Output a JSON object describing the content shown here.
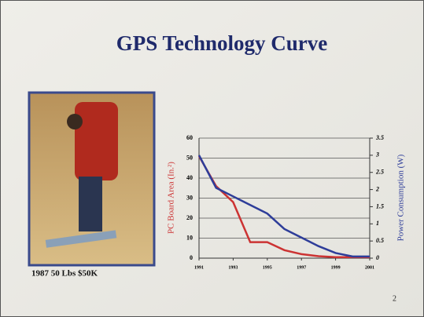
{
  "chart_data": {
    "type": "line",
    "title": "GPS Technology Curve",
    "x": [
      1991,
      1992,
      1993,
      1994,
      1995,
      1996,
      1997,
      1998,
      1999,
      2000,
      2001
    ],
    "xlim": [
      1991,
      2001
    ],
    "xticks": [
      1991,
      1993,
      1995,
      1997,
      1999,
      2001
    ],
    "ylim": [
      0,
      60
    ],
    "yticks": [
      0,
      10,
      20,
      30,
      40,
      50,
      60
    ],
    "y2lim": [
      0,
      3.5
    ],
    "y2ticks": [
      0,
      0.5,
      1,
      1.5,
      2,
      2.5,
      3,
      3.5
    ],
    "ylabel": "PC Board Area (In.²)",
    "y2label": "Power Consumption (W)",
    "grid": true,
    "series": [
      {
        "color": "#cc3333",
        "values": [
          51,
          36,
          28,
          8,
          8,
          4,
          2,
          1,
          0.5,
          0.5,
          0.5
        ]
      },
      {
        "color": "#2e3d99",
        "axis": "y2",
        "values": [
          3.0,
          2.05,
          1.8,
          1.55,
          1.3,
          0.85,
          0.6,
          0.35,
          0.15,
          0.05,
          0.05
        ]
      }
    ]
  },
  "caption": "1987  50 Lbs  $50K",
  "page_number": "2"
}
